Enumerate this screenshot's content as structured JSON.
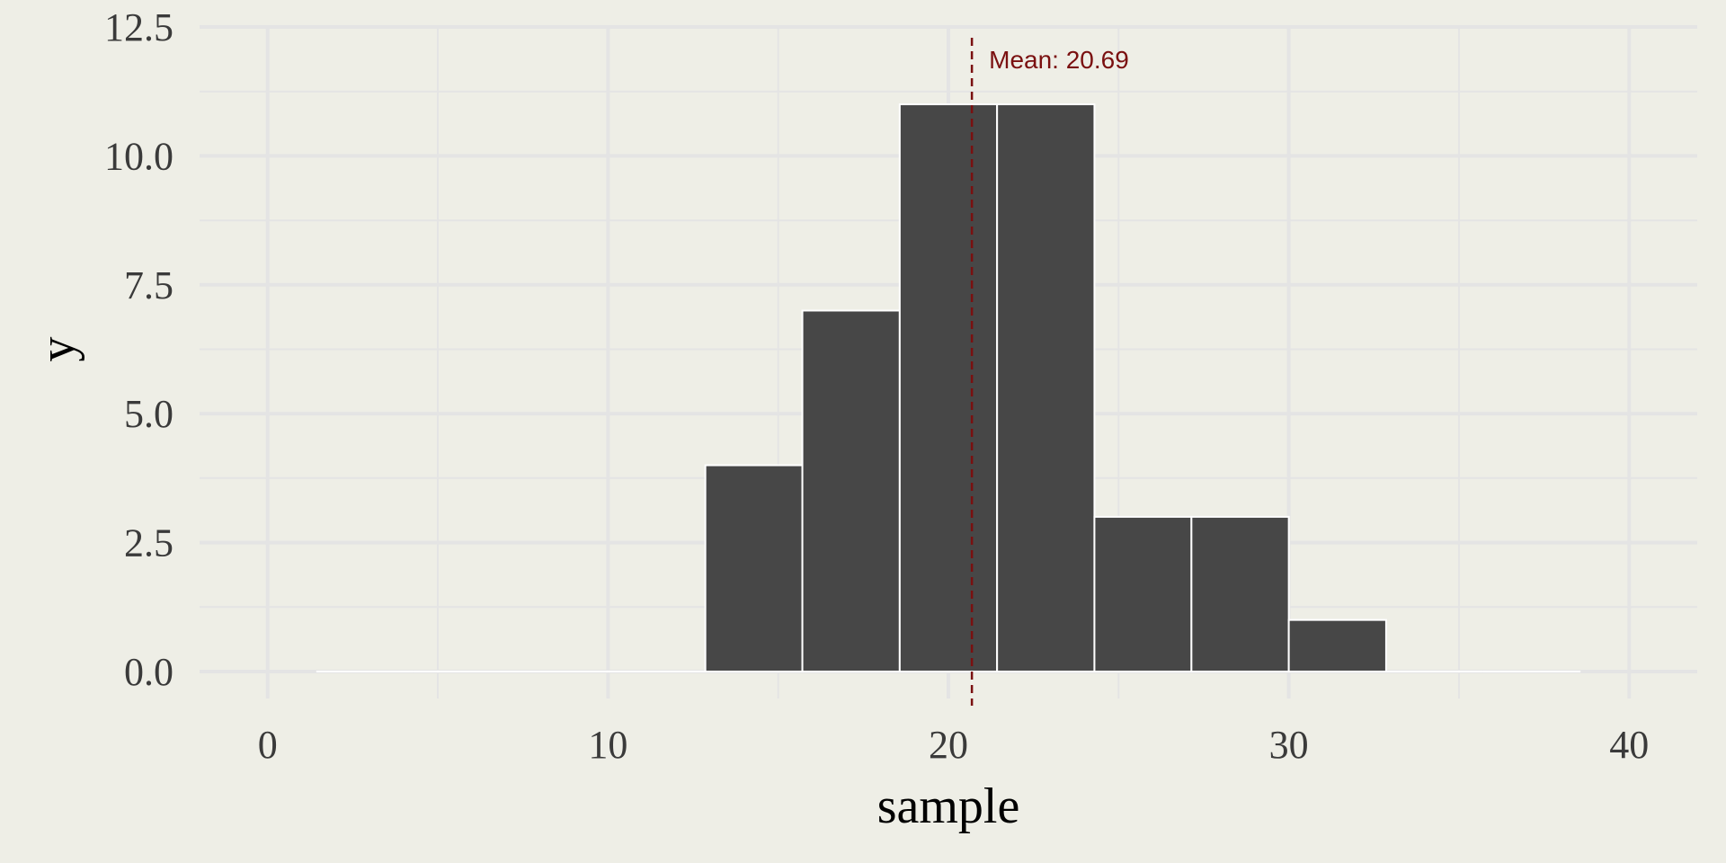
{
  "chart_data": {
    "type": "bar",
    "subtype": "histogram",
    "title": "",
    "xlabel": "sample",
    "ylabel": "y",
    "xlim": [
      -2,
      42
    ],
    "ylim": [
      0,
      12.5
    ],
    "x_ticks": [
      0,
      10,
      20,
      30,
      40
    ],
    "x_tick_labels": [
      "0",
      "10",
      "20",
      "30",
      "40"
    ],
    "y_ticks": [
      0,
      2.5,
      5,
      7.5,
      10,
      12.5
    ],
    "y_tick_labels": [
      "0.0",
      "2.5",
      "5.0",
      "7.5",
      "10.0",
      "12.5"
    ],
    "bins": [
      {
        "start": 1.43,
        "end": 4.29,
        "count": 0
      },
      {
        "start": 4.29,
        "end": 7.14,
        "count": 0
      },
      {
        "start": 7.14,
        "end": 10.0,
        "count": 0
      },
      {
        "start": 10.0,
        "end": 12.86,
        "count": 0
      },
      {
        "start": 12.86,
        "end": 15.71,
        "count": 4
      },
      {
        "start": 15.71,
        "end": 18.57,
        "count": 7
      },
      {
        "start": 18.57,
        "end": 21.43,
        "count": 11
      },
      {
        "start": 21.43,
        "end": 24.29,
        "count": 11
      },
      {
        "start": 24.29,
        "end": 27.14,
        "count": 3
      },
      {
        "start": 27.14,
        "end": 30.0,
        "count": 3
      },
      {
        "start": 30.0,
        "end": 32.86,
        "count": 1
      },
      {
        "start": 32.86,
        "end": 35.71,
        "count": 0
      },
      {
        "start": 35.71,
        "end": 38.57,
        "count": 0
      }
    ],
    "mean": 20.69,
    "mean_label": "Mean:  20.69",
    "grid": true,
    "legend": "none",
    "colors": {
      "background": "#eeeee6",
      "bar_fill": "#474747",
      "bar_edge": "#ffffff",
      "grid": "#e4e4e4",
      "mean_line": "#7a1010"
    }
  }
}
